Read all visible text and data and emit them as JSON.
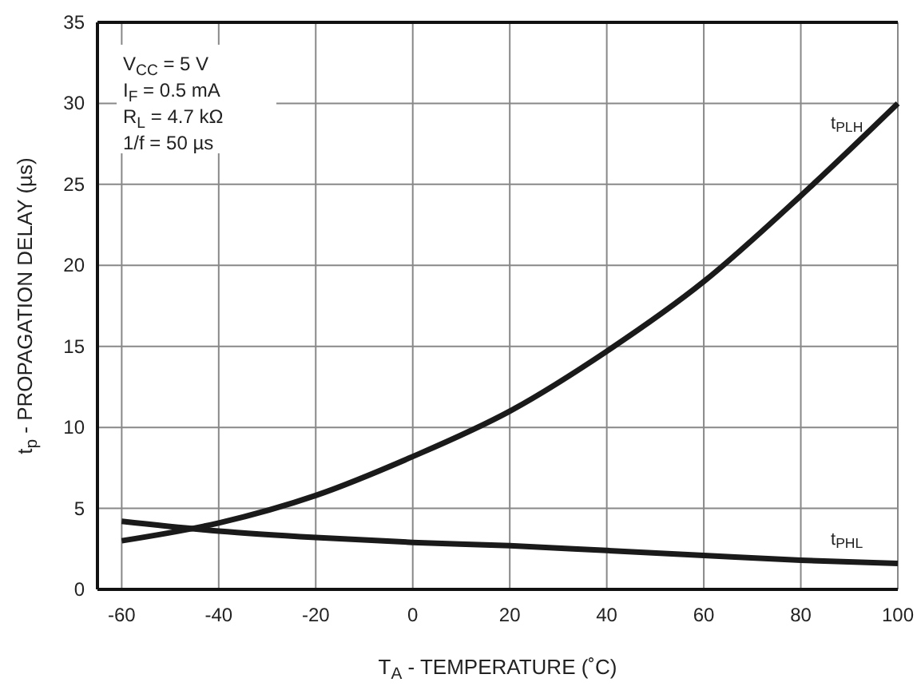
{
  "chart_data": {
    "type": "line",
    "xlabel": "T$_{A}$ - TEMPERATURE (˚C)",
    "ylabel": "t$_{p}$ - PROPAGATION DELAY (µs)",
    "x": [
      -60,
      -40,
      -20,
      0,
      20,
      40,
      60,
      80,
      100
    ],
    "series": [
      {
        "name": "t$_{PLH}$",
        "color": "#1a1a1a",
        "values": [
          3.0,
          4.1,
          5.8,
          8.2,
          11.0,
          14.7,
          19.0,
          24.3,
          30.0
        ]
      },
      {
        "name": "t$_{PHL}$",
        "color": "#1a1a1a",
        "values": [
          4.2,
          3.6,
          3.2,
          2.9,
          2.7,
          2.4,
          2.1,
          1.8,
          1.6
        ]
      }
    ],
    "xlim": [
      -65,
      100
    ],
    "xticks": [
      -60,
      -40,
      -20,
      0,
      20,
      40,
      60,
      80,
      100
    ],
    "ylim": [
      0,
      35
    ],
    "yticks": [
      0,
      5,
      10,
      15,
      20,
      25,
      30,
      35
    ],
    "grid": true,
    "marker": "none",
    "line_style": "solid",
    "annotations": [
      "V$_{CC}$ = 5 V",
      "I$_{F}$ = 0.5 mA",
      "R$_{L}$ = 4.7 kΩ",
      "1/f = 50 µs"
    ]
  }
}
